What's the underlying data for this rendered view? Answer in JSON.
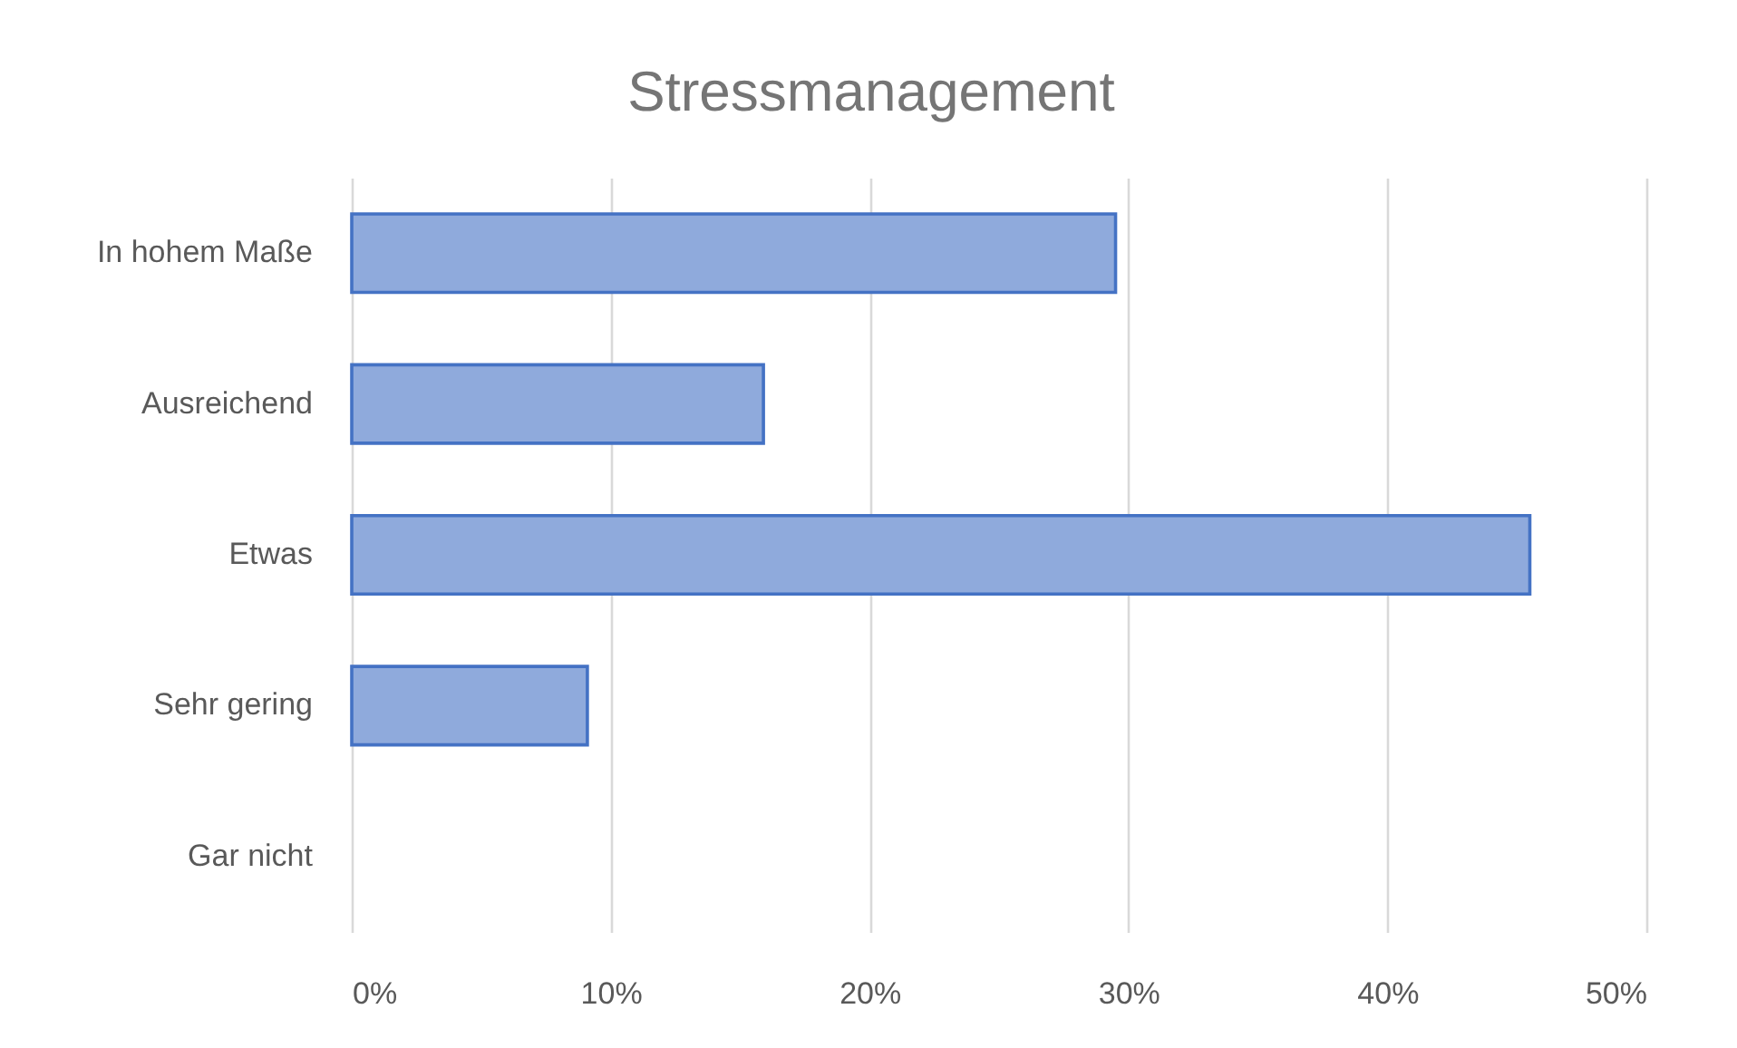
{
  "chart_data": {
    "type": "bar",
    "orientation": "horizontal",
    "title": "Stressmanagement",
    "categories": [
      "In hohem Maße",
      "Ausreichend",
      "Etwas",
      "Sehr gering",
      "Gar nicht"
    ],
    "values": [
      29.5,
      15.9,
      45.5,
      9.1,
      0
    ],
    "color": "#8faadc",
    "xlim": [
      0,
      50
    ],
    "xticks": [
      {
        "value": 0,
        "label": "0%"
      },
      {
        "value": 10,
        "label": "10%"
      },
      {
        "value": 20,
        "label": "20%"
      },
      {
        "value": 30,
        "label": "30%"
      },
      {
        "value": 40,
        "label": "40%"
      },
      {
        "value": 50,
        "label": "50%"
      }
    ],
    "grid": "x"
  }
}
